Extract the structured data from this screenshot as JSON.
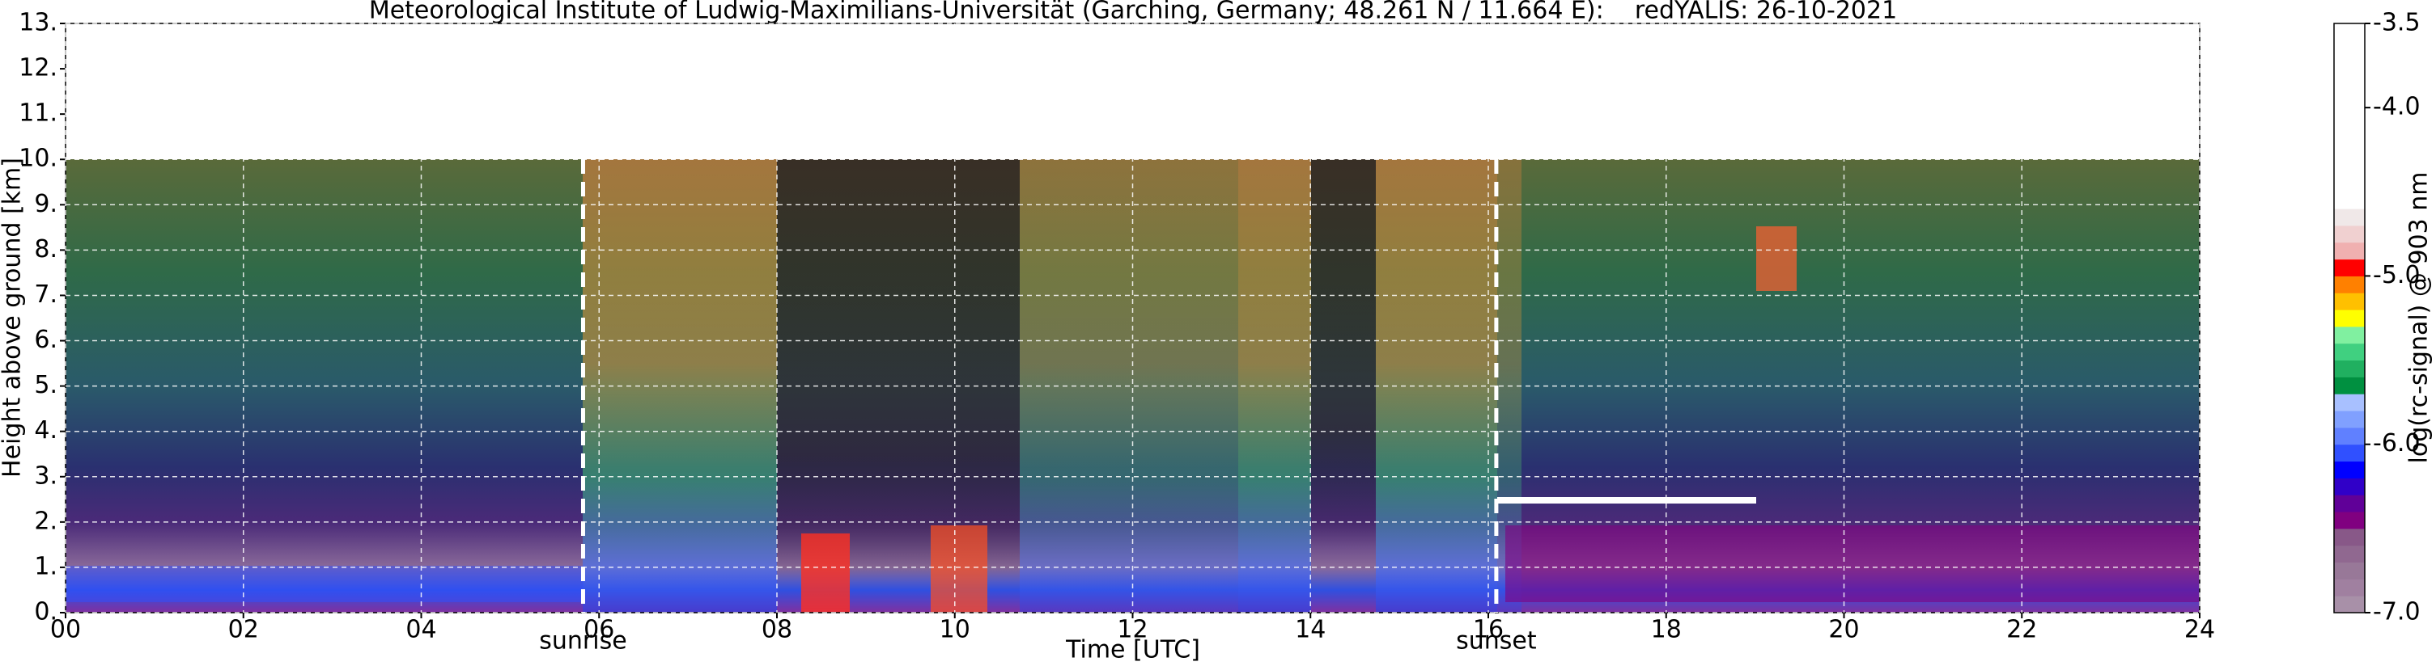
{
  "chart_data": {
    "type": "heatmap",
    "title": "Meteorological Institute of Ludwig-Maximilians-Universität (Garching, Germany; 48.261 N / 11.664 E):    redYALIS: 26-10-2021",
    "xlabel": "Time [UTC]",
    "ylabel": "Height above ground [km]",
    "xlim": [
      0,
      24
    ],
    "xticks": [
      {
        "value": 0,
        "label": "00"
      },
      {
        "value": 2,
        "label": "02"
      },
      {
        "value": 4,
        "label": "04"
      },
      {
        "value": 6,
        "label": "06"
      },
      {
        "value": 8,
        "label": "08"
      },
      10,
      12,
      14,
      16,
      18,
      20,
      22,
      24
    ],
    "ylim": [
      0,
      13
    ],
    "yticks": [
      {
        "value": 0,
        "label": "0."
      },
      {
        "value": 1,
        "label": "1."
      },
      {
        "value": 2,
        "label": "2."
      },
      {
        "value": 3,
        "label": "3."
      },
      {
        "value": 4,
        "label": "4."
      },
      {
        "value": 5,
        "label": "5."
      },
      {
        "value": 6,
        "label": "6."
      },
      {
        "value": 7,
        "label": "7."
      },
      {
        "value": 8,
        "label": "8."
      },
      {
        "value": 9,
        "label": "9."
      },
      {
        "value": 10,
        "label": "10."
      },
      {
        "value": 11,
        "label": "11."
      },
      {
        "value": 12,
        "label": "12."
      },
      {
        "value": 13,
        "label": "13."
      }
    ],
    "grid": true,
    "annotations": [
      {
        "text": "sunrise",
        "x": 5.82
      },
      {
        "text": "sunset",
        "x": 16.09
      }
    ],
    "colorbar": {
      "label": "log(rc-signal) @ 903 nm",
      "lim": [
        -7,
        -3.5
      ],
      "ticks": [
        -3.5,
        {
          "value": -4,
          "label": "-4.0"
        },
        {
          "value": -5,
          "label": "-5.0"
        },
        {
          "value": -6,
          "label": "-6.0"
        },
        {
          "value": -7,
          "label": "-7.0"
        }
      ],
      "colors": [
        "#a890a8",
        "#a080a0",
        "#987898",
        "#906890",
        "#885888",
        "#800080",
        "#600098",
        "#3000c8",
        "#0000ff",
        "#3050ff",
        "#6080ff",
        "#80a0ff",
        "#a8c0ff",
        "#009040",
        "#20b060",
        "#40d080",
        "#80f0a0",
        "#ffff00",
        "#ffc000",
        "#ff8000",
        "#ff0000",
        "#f0b0b0",
        "#f0d0d0",
        "#f0e8e8",
        "#ffffff",
        "#ffffff",
        "#ffffff",
        "#ffffff",
        "#ffffff",
        "#ffffff",
        "#ffffff",
        "#ffffff",
        "#ffffff",
        "#ffffff",
        "#ffffff"
      ]
    }
  }
}
